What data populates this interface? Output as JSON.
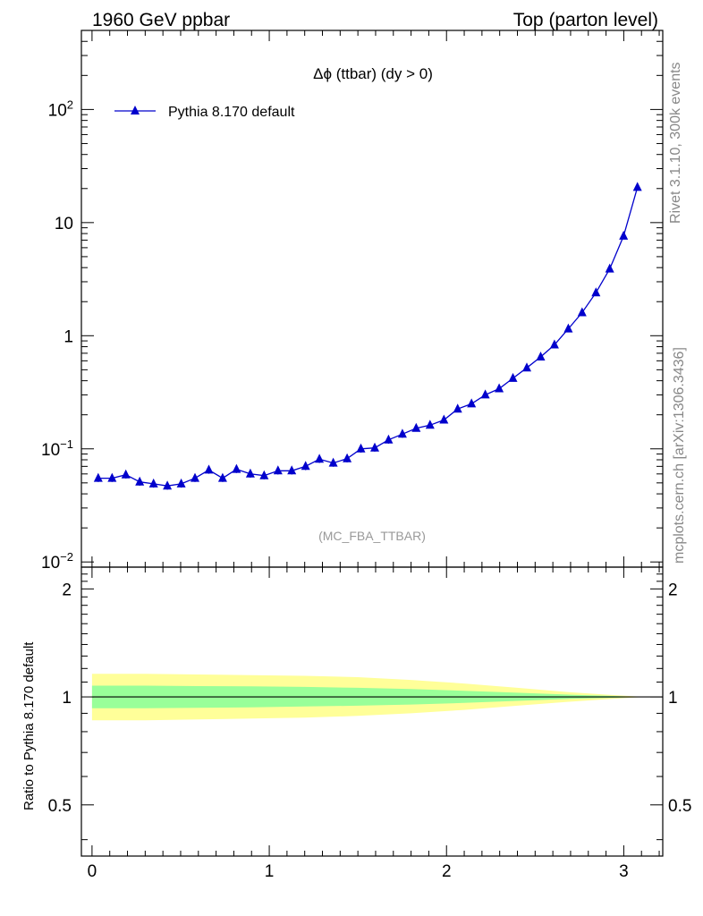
{
  "header": {
    "left": "1960 GeV ppbar",
    "right": "Top (parton level)"
  },
  "side_labels": {
    "rivet": "Rivet 3.1.10,  300k events",
    "mcplots": "mcplots.cern.ch [arXiv:1306.3436]"
  },
  "chart_data": [
    {
      "type": "line",
      "title": "Δϕ (ttbar) (dy > 0)",
      "watermark": "(MC_FBA_TTBAR)",
      "xlim": [
        -0.06,
        3.22
      ],
      "ylim": [
        0.009,
        500
      ],
      "yscale": "log",
      "ytick_labels": [
        "10^-2",
        "10^-1",
        "1",
        "10",
        "10^2"
      ],
      "legend": {
        "placement": "top-left",
        "entries": [
          "Pythia 8.170 default"
        ]
      },
      "colors": {
        "series": "#0000cc"
      },
      "series": [
        {
          "name": "Pythia 8.170 default",
          "marker": "triangle",
          "x": [
            0.035,
            0.113,
            0.191,
            0.269,
            0.347,
            0.425,
            0.503,
            0.581,
            0.659,
            0.737,
            0.815,
            0.893,
            0.971,
            1.049,
            1.127,
            1.205,
            1.283,
            1.361,
            1.439,
            1.517,
            1.595,
            1.673,
            1.751,
            1.829,
            1.907,
            1.985,
            2.063,
            2.141,
            2.219,
            2.297,
            2.375,
            2.453,
            2.531,
            2.609,
            2.687,
            2.765,
            2.843,
            2.921,
            2.999,
            3.077
          ],
          "y": [
            0.055,
            0.055,
            0.059,
            0.051,
            0.049,
            0.047,
            0.049,
            0.055,
            0.065,
            0.055,
            0.066,
            0.06,
            0.058,
            0.064,
            0.064,
            0.07,
            0.081,
            0.075,
            0.082,
            0.1,
            0.102,
            0.12,
            0.135,
            0.152,
            0.162,
            0.18,
            0.225,
            0.25,
            0.3,
            0.34,
            0.42,
            0.52,
            0.65,
            0.83,
            1.15,
            1.6,
            2.4,
            3.9,
            7.6,
            20.5
          ]
        }
      ]
    },
    {
      "type": "area",
      "ylabel": "Ratio to Pythia 8.170 default",
      "xlim": [
        -0.06,
        3.22
      ],
      "ylim": [
        0.36,
        2.3
      ],
      "ytick_labels": [
        "0.5",
        "1",
        "2"
      ],
      "xtick_labels": [
        "0",
        "1",
        "2",
        "3"
      ],
      "colors": {
        "outer_band": "#ffff99",
        "inner_band": "#99ff99",
        "reference": "#000000"
      },
      "reference_line": 1,
      "bands": {
        "x": [
          0.0,
          0.3,
          0.6,
          0.9,
          1.2,
          1.5,
          1.8,
          2.1,
          2.4,
          2.7,
          2.9,
          3.05,
          3.12
        ],
        "outer_lo": [
          0.86,
          0.86,
          0.865,
          0.87,
          0.875,
          0.885,
          0.9,
          0.92,
          0.945,
          0.97,
          0.985,
          0.995,
          1.0
        ],
        "outer_hi": [
          1.16,
          1.16,
          1.155,
          1.15,
          1.145,
          1.135,
          1.115,
          1.09,
          1.06,
          1.03,
          1.015,
          1.005,
          1.0
        ],
        "inner_lo": [
          0.93,
          0.93,
          0.932,
          0.935,
          0.94,
          0.945,
          0.952,
          0.962,
          0.975,
          0.987,
          0.993,
          0.998,
          1.0
        ],
        "inner_hi": [
          1.075,
          1.075,
          1.072,
          1.07,
          1.066,
          1.06,
          1.052,
          1.04,
          1.027,
          1.014,
          1.007,
          1.002,
          1.0
        ]
      }
    }
  ]
}
